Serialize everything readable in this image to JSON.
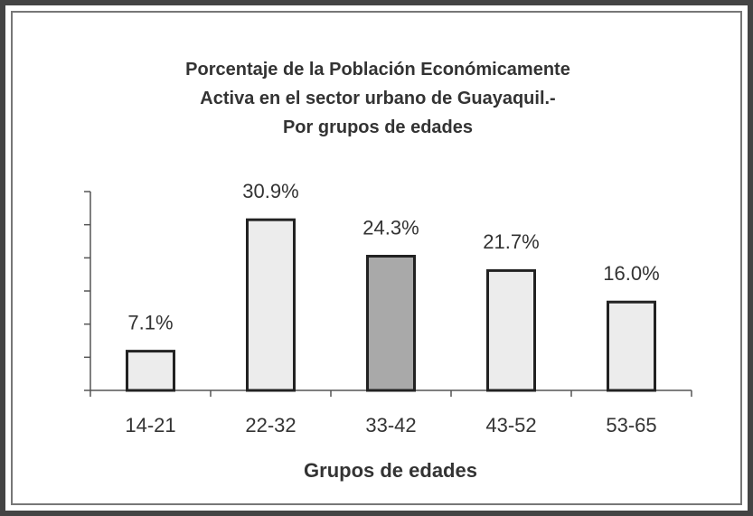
{
  "chart_data": {
    "type": "bar",
    "title": "Porcentaje de la Población Económicamente\nActiva  en el sector urbano de Guayaquil.-\nPor grupos de edades",
    "x_label": "Grupos de edades",
    "categories": [
      "14-21",
      "22-32",
      "33-42",
      "43-52",
      "53-65"
    ],
    "values": [
      7.1,
      30.9,
      24.3,
      21.7,
      16.0
    ],
    "value_labels": [
      "7.1%",
      "30.9%",
      "24.3%",
      "21.7%",
      "16.0%"
    ],
    "colors": [
      "#ececec",
      "#ececec",
      "#a9a9a9",
      "#ececec",
      "#ececec"
    ],
    "ylim": [
      0,
      36
    ],
    "yticks": [
      0,
      6,
      12,
      18,
      24,
      30,
      36
    ],
    "grid": false
  }
}
